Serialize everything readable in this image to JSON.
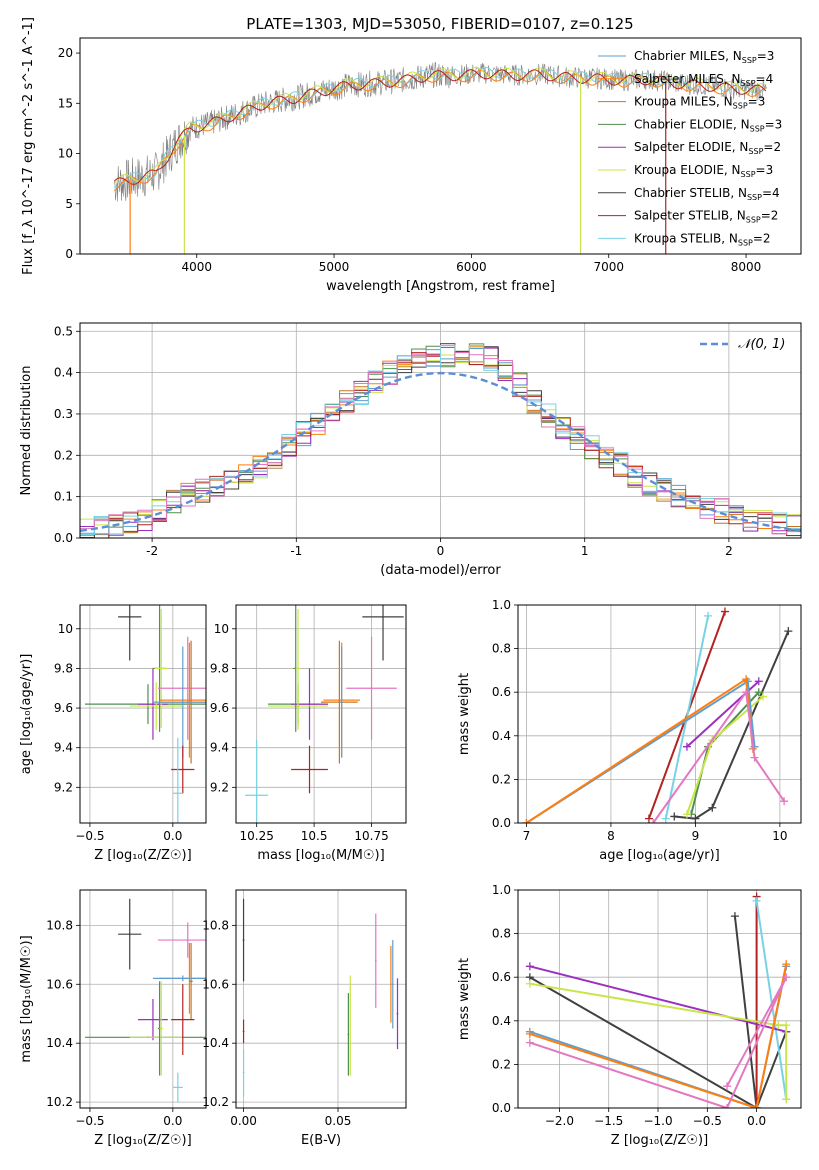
{
  "figure": {
    "title": "PLATE=1303, MJD=53050, FIBERID=0107, z=0.125"
  },
  "colors": {
    "chabrier_miles": "#5f9ed1",
    "salpeter_miles": "#ff7f0e",
    "kroupa_miles": "#c8741e",
    "chabrier_elodie": "#4f8f4f",
    "salpeter_elodie": "#9b30c0",
    "kroupa_elodie": "#c8e64a",
    "chabrier_stelib": "#404040",
    "salpeter_stelib": "#b22222",
    "kroupa_stelib": "#78d2e6",
    "kroupa_stelib_alt": "#e377c2"
  },
  "chart_data": [
    {
      "id": "spectrum",
      "type": "line",
      "xlabel": "wavelength [Angstrom, rest frame]",
      "ylabel": "Flux [f_λ 10^-17 erg cm^-2 s^-1 A^-1]",
      "xlim": [
        3150,
        8400
      ],
      "ylim": [
        0,
        21.5
      ],
      "xticks": [
        4000,
        5000,
        6000,
        7000,
        8000
      ],
      "yticks": [
        0,
        5,
        10,
        15,
        20
      ],
      "legend_position": "top-right",
      "legend": [
        {
          "label": "Chabrier MILES, N",
          "sub": "SSP",
          "suffix": "=3",
          "color": "chabrier_miles"
        },
        {
          "label": "Salpeter MILES, N",
          "sub": "SSP",
          "suffix": "=4",
          "color": "salpeter_miles"
        },
        {
          "label": "Kroupa MILES, N",
          "sub": "SSP",
          "suffix": "=3",
          "color": "kroupa_miles"
        },
        {
          "label": "Chabrier ELODIE, N",
          "sub": "SSP",
          "suffix": "=3",
          "color": "chabrier_elodie"
        },
        {
          "label": "Salpeter ELODIE, N",
          "sub": "SSP",
          "suffix": "=2",
          "color": "salpeter_elodie"
        },
        {
          "label": "Kroupa ELODIE, N",
          "sub": "SSP",
          "suffix": "=3",
          "color": "kroupa_elodie"
        },
        {
          "label": "Chabrier STELIB, N",
          "sub": "SSP",
          "suffix": "=4",
          "color": "chabrier_stelib"
        },
        {
          "label": "Salpeter STELIB, N",
          "sub": "SSP",
          "suffix": "=2",
          "color": "salpeter_stelib"
        },
        {
          "label": "Kroupa STELIB, N",
          "sub": "SSP",
          "suffix": "=2",
          "color": "kroupa_stelib"
        }
      ],
      "continuum": {
        "x": [
          3400,
          3550,
          3700,
          3850,
          3950,
          4100,
          4300,
          4500,
          4700,
          4900,
          5100,
          5300,
          5500,
          5700,
          5900,
          6100,
          6300,
          6500,
          6700,
          6900,
          7100,
          7300,
          7500,
          7700,
          7900,
          8150
        ],
        "y": [
          7.0,
          7.5,
          8.0,
          11.0,
          12.5,
          13.0,
          14.0,
          15.0,
          15.5,
          16.2,
          16.8,
          17.0,
          17.3,
          17.8,
          17.8,
          18.0,
          17.8,
          17.9,
          17.6,
          17.5,
          17.3,
          17.4,
          17.0,
          16.8,
          16.5,
          16.3
        ]
      },
      "dips": [
        {
          "series": "salpeter_miles",
          "x_from": 3510,
          "x_to": 3520
        },
        {
          "series": "kroupa_elodie",
          "x_from": 3905,
          "x_to": 3915
        },
        {
          "series": "kroupa_elodie",
          "x_from": 6790,
          "x_to": 6800
        },
        {
          "series": "salpeter_stelib",
          "x_from": 7410,
          "x_to": 7420
        }
      ]
    },
    {
      "id": "residuals",
      "type": "area",
      "xlabel": "(data-model)/error",
      "ylabel": "Normed distribution",
      "xlim": [
        -2.5,
        2.5
      ],
      "ylim": [
        0,
        0.52
      ],
      "xticks": [
        -2,
        -1,
        0,
        1,
        2
      ],
      "yticks": [
        0.0,
        0.1,
        0.2,
        0.3,
        0.4,
        0.5
      ],
      "legend_position": "top-right",
      "legend": [
        {
          "label": "𝒩(0, 1)",
          "color": "#5b8ed6"
        }
      ],
      "reference_curve": "gaussian(0,1)",
      "bin_width": 0.1,
      "bins_start": -2.5,
      "approx_profile": {
        "x": [
          -2.5,
          -2.2,
          -2.0,
          -1.8,
          -1.6,
          -1.4,
          -1.2,
          -1.0,
          -0.8,
          -0.6,
          -0.4,
          -0.2,
          0.0,
          0.2,
          0.4,
          0.6,
          0.8,
          1.0,
          1.2,
          1.4,
          1.6,
          1.8,
          2.0,
          2.2,
          2.5
        ],
        "y": [
          0.02,
          0.03,
          0.05,
          0.1,
          0.12,
          0.14,
          0.18,
          0.24,
          0.29,
          0.34,
          0.39,
          0.43,
          0.44,
          0.45,
          0.43,
          0.35,
          0.28,
          0.23,
          0.19,
          0.14,
          0.11,
          0.08,
          0.06,
          0.04,
          0.03
        ]
      },
      "series_colors": [
        "chabrier_miles",
        "salpeter_miles",
        "kroupa_miles",
        "chabrier_elodie",
        "salpeter_elodie",
        "kroupa_elodie",
        "chabrier_stelib",
        "salpeter_stelib",
        "kroupa_stelib",
        "kroupa_stelib_alt"
      ]
    },
    {
      "id": "age_vs_Z",
      "type": "scatter",
      "xlabel": "Z [log₁₀(Z/Z☉)]",
      "ylabel": "age  [log₁₀(age/yr)]",
      "xlim": [
        -0.56,
        0.2
      ],
      "ylim": [
        9.02,
        10.12
      ],
      "xticks": [
        -0.5,
        0.0
      ],
      "xticklabels": [
        "−0.5",
        "0.0"
      ],
      "yticks": [
        9.2,
        9.4,
        9.6,
        9.8,
        10.0
      ],
      "points": [
        {
          "x": -0.26,
          "y": 10.06,
          "xerr": 0.07,
          "yerr": 0.22,
          "color": "chabrier_stelib"
        },
        {
          "x": -0.15,
          "y": 9.62,
          "xerr": 0.38,
          "yerr": 0.1,
          "color": "chabrier_elodie"
        },
        {
          "x": -0.12,
          "y": 9.62,
          "xerr": 0.09,
          "yerr": 0.18,
          "color": "salpeter_elodie"
        },
        {
          "x": -0.1,
          "y": 9.61,
          "xerr": 0.16,
          "yerr": 0.12,
          "color": "kroupa_elodie"
        },
        {
          "x": -0.08,
          "y": 9.8,
          "xerr": 0.04,
          "yerr": 0.32,
          "color": "chabrier_elodie"
        },
        {
          "x": -0.07,
          "y": 9.8,
          "xerr": 0.04,
          "yerr": 0.3,
          "color": "kroupa_elodie"
        },
        {
          "x": 0.09,
          "y": 9.7,
          "xerr": 0.18,
          "yerr": 0.26,
          "color": "kroupa_stelib_alt"
        },
        {
          "x": 0.1,
          "y": 9.64,
          "xerr": 0.18,
          "yerr": 0.29,
          "color": "salpeter_miles"
        },
        {
          "x": 0.11,
          "y": 9.63,
          "xerr": 0.18,
          "yerr": 0.31,
          "color": "kroupa_miles"
        },
        {
          "x": 0.06,
          "y": 9.63,
          "xerr": 0.18,
          "yerr": 0.28,
          "color": "chabrier_miles"
        },
        {
          "x": 0.06,
          "y": 9.29,
          "xerr": 0.07,
          "yerr": 0.12,
          "color": "salpeter_stelib"
        },
        {
          "x": 0.03,
          "y": 9.17,
          "xerr": 0.03,
          "yerr": 0.28,
          "color": "kroupa_stelib"
        }
      ]
    },
    {
      "id": "age_vs_mass",
      "type": "scatter",
      "xlabel": "mass [log₁₀(M/M☉)]",
      "ylabel": "",
      "xlim": [
        10.16,
        10.9
      ],
      "ylim": [
        9.02,
        10.12
      ],
      "xticks": [
        10.25,
        10.5,
        10.75
      ],
      "yticks": [
        9.2,
        9.4,
        9.6,
        9.8,
        10.0
      ],
      "points": [
        {
          "x": 10.8,
          "y": 10.06,
          "xerr": 0.09,
          "yerr": 0.22,
          "color": "chabrier_stelib"
        },
        {
          "x": 10.43,
          "y": 9.62,
          "xerr": 0.13,
          "yerr": 0.1,
          "color": "chabrier_elodie"
        },
        {
          "x": 10.48,
          "y": 9.62,
          "xerr": 0.08,
          "yerr": 0.18,
          "color": "salpeter_elodie"
        },
        {
          "x": 10.43,
          "y": 9.61,
          "xerr": 0.13,
          "yerr": 0.12,
          "color": "kroupa_elodie"
        },
        {
          "x": 10.42,
          "y": 9.8,
          "xerr": 0.01,
          "yerr": 0.32,
          "color": "chabrier_elodie"
        },
        {
          "x": 10.43,
          "y": 9.8,
          "xerr": 0.01,
          "yerr": 0.3,
          "color": "kroupa_elodie"
        },
        {
          "x": 10.75,
          "y": 9.7,
          "xerr": 0.11,
          "yerr": 0.26,
          "color": "kroupa_stelib_alt"
        },
        {
          "x": 10.62,
          "y": 9.64,
          "xerr": 0.08,
          "yerr": 0.29,
          "color": "salpeter_miles"
        },
        {
          "x": 10.61,
          "y": 9.63,
          "xerr": 0.08,
          "yerr": 0.31,
          "color": "kroupa_miles"
        },
        {
          "x": 10.62,
          "y": 9.63,
          "xerr": 0.01,
          "yerr": 0.28,
          "color": "chabrier_miles"
        },
        {
          "x": 10.48,
          "y": 9.29,
          "xerr": 0.08,
          "yerr": 0.12,
          "color": "salpeter_stelib"
        },
        {
          "x": 10.25,
          "y": 9.16,
          "xerr": 0.05,
          "yerr": 0.28,
          "color": "kroupa_stelib"
        }
      ]
    },
    {
      "id": "mass_weight_vs_age",
      "type": "line",
      "xlabel": "age  [log₁₀(age/yr)]",
      "ylabel": "mass weight",
      "xlim": [
        6.9,
        10.25
      ],
      "ylim": [
        0,
        1
      ],
      "xticks": [
        7,
        8,
        9,
        10
      ],
      "yticks": [
        0.0,
        0.2,
        0.4,
        0.6,
        0.8,
        1.0
      ],
      "series": [
        {
          "color": "chabrier_stelib",
          "x": [
            8.75,
            9.0,
            9.2,
            10.1
          ],
          "y": [
            0.03,
            0.02,
            0.07,
            0.88
          ]
        },
        {
          "color": "salpeter_stelib",
          "x": [
            8.45,
            9.35
          ],
          "y": [
            0.02,
            0.97
          ]
        },
        {
          "color": "kroupa_stelib",
          "x": [
            8.65,
            9.15
          ],
          "y": [
            0.02,
            0.95
          ]
        },
        {
          "color": "salpeter_elodie",
          "x": [
            8.9,
            9.75
          ],
          "y": [
            0.35,
            0.65
          ]
        },
        {
          "color": "chabrier_elodie",
          "x": [
            8.95,
            9.15,
            9.75
          ],
          "y": [
            0.04,
            0.35,
            0.6
          ]
        },
        {
          "color": "kroupa_elodie",
          "x": [
            8.9,
            9.2,
            9.8
          ],
          "y": [
            0.04,
            0.38,
            0.58
          ]
        },
        {
          "color": "chabrier_miles",
          "x": [
            7.0,
            9.62,
            9.7
          ],
          "y": [
            0.0,
            0.65,
            0.35
          ]
        },
        {
          "color": "salpeter_miles",
          "x": [
            7.0,
            9.6,
            9.68
          ],
          "y": [
            0.0,
            0.66,
            0.34
          ]
        },
        {
          "color": "kroupa_stelib_alt",
          "x": [
            8.5,
            9.6,
            9.7,
            10.05
          ],
          "y": [
            0.0,
            0.6,
            0.3,
            0.1
          ]
        }
      ]
    },
    {
      "id": "mass_vs_Z",
      "type": "scatter",
      "xlabel": "Z [log₁₀(Z/Z☉)]",
      "ylabel": "mass [log₁₀(M/M☉)]",
      "xlim": [
        -0.56,
        0.2
      ],
      "ylim": [
        10.18,
        10.92
      ],
      "xticks": [
        -0.5,
        0.0
      ],
      "xticklabels": [
        "−0.5",
        "0.0"
      ],
      "yticks": [
        10.2,
        10.4,
        10.6,
        10.8
      ],
      "points": [
        {
          "x": -0.26,
          "y": 10.77,
          "xerr": 0.07,
          "yerr": 0.12,
          "color": "chabrier_stelib"
        },
        {
          "x": -0.15,
          "y": 10.42,
          "xerr": 0.38,
          "yerr": 0.0,
          "color": "chabrier_elodie"
        },
        {
          "x": -0.12,
          "y": 10.48,
          "xerr": 0.09,
          "yerr": 0.07,
          "color": "salpeter_elodie"
        },
        {
          "x": -0.1,
          "y": 10.42,
          "xerr": 0.16,
          "yerr": 0.0,
          "color": "kroupa_elodie"
        },
        {
          "x": -0.08,
          "y": 10.45,
          "xerr": 0.01,
          "yerr": 0.16,
          "color": "chabrier_elodie"
        },
        {
          "x": -0.07,
          "y": 10.45,
          "xerr": 0.01,
          "yerr": 0.16,
          "color": "kroupa_elodie"
        },
        {
          "x": 0.09,
          "y": 10.75,
          "xerr": 0.18,
          "yerr": 0.06,
          "color": "kroupa_stelib_alt"
        },
        {
          "x": 0.1,
          "y": 10.62,
          "xerr": 0.18,
          "yerr": 0.12,
          "color": "salpeter_miles"
        },
        {
          "x": 0.11,
          "y": 10.61,
          "xerr": 0.01,
          "yerr": 0.13,
          "color": "kroupa_miles"
        },
        {
          "x": 0.06,
          "y": 10.62,
          "xerr": 0.18,
          "yerr": 0.01,
          "color": "chabrier_miles"
        },
        {
          "x": 0.06,
          "y": 10.48,
          "xerr": 0.07,
          "yerr": 0.12,
          "color": "salpeter_stelib"
        },
        {
          "x": 0.03,
          "y": 10.25,
          "xerr": 0.03,
          "yerr": 0.05,
          "color": "kroupa_stelib"
        }
      ]
    },
    {
      "id": "mass_vs_ebv",
      "type": "scatter",
      "xlabel": "E(B-V)",
      "ylabel": "",
      "xlim": [
        -0.004,
        0.086
      ],
      "ylim": [
        10.18,
        10.92
      ],
      "xticks": [
        0.0,
        0.05
      ],
      "xticklabels": [
        "0.00",
        "0.05"
      ],
      "yticks": [
        10.2,
        10.4,
        10.6,
        10.8
      ],
      "points": [
        {
          "x": 0.0,
          "y": 10.75,
          "yerr": 0.14,
          "color": "chabrier_stelib"
        },
        {
          "x": 0.0,
          "y": 10.44,
          "yerr": 0.04,
          "color": "salpeter_stelib"
        },
        {
          "x": 0.0,
          "y": 10.3,
          "yerr": 0.08,
          "color": "kroupa_stelib"
        },
        {
          "x": 0.0555,
          "y": 10.43,
          "yerr": 0.14,
          "color": "chabrier_elodie"
        },
        {
          "x": 0.0565,
          "y": 10.46,
          "yerr": 0.17,
          "color": "kroupa_elodie"
        },
        {
          "x": 0.07,
          "y": 10.68,
          "yerr": 0.16,
          "color": "kroupa_stelib_alt"
        },
        {
          "x": 0.078,
          "y": 10.6,
          "yerr": 0.13,
          "color": "salpeter_miles"
        },
        {
          "x": 0.079,
          "y": 10.6,
          "yerr": 0.15,
          "color": "chabrier_miles"
        },
        {
          "x": 0.0815,
          "y": 10.5,
          "yerr": 0.12,
          "color": "salpeter_elodie"
        }
      ]
    },
    {
      "id": "mass_weight_vs_Z",
      "type": "line",
      "xlabel": "Z [log₁₀(Z/Z☉)]",
      "ylabel": "mass weight",
      "xlim": [
        -2.42,
        0.45
      ],
      "ylim": [
        0,
        1
      ],
      "xticks": [
        -2.0,
        -1.5,
        -1.0,
        -0.5,
        0.0
      ],
      "xticklabels": [
        "−2.0",
        "−1.5",
        "−1.0",
        "−0.5",
        "0.0"
      ],
      "yticks": [
        0.0,
        0.2,
        0.4,
        0.6,
        0.8,
        1.0
      ],
      "series": [
        {
          "color": "chabrier_stelib",
          "x": [
            -0.22,
            0.0,
            -2.3,
            0.0,
            0.3
          ],
          "y": [
            0.88,
            0.0,
            0.6,
            0.0,
            0.35
          ]
        },
        {
          "color": "salpeter_stelib",
          "x": [
            0.0,
            0.0
          ],
          "y": [
            0.97,
            0.0
          ]
        },
        {
          "color": "kroupa_stelib",
          "x": [
            0.0,
            0.3
          ],
          "y": [
            0.95,
            0.04
          ]
        },
        {
          "color": "salpeter_elodie",
          "x": [
            -2.3,
            0.3
          ],
          "y": [
            0.65,
            0.35
          ]
        },
        {
          "color": "kroupa_elodie",
          "x": [
            -2.3,
            0.22,
            0.3,
            0.3
          ],
          "y": [
            0.57,
            0.38,
            0.38,
            0.04
          ]
        },
        {
          "color": "chabrier_miles",
          "x": [
            -2.3,
            0.0,
            0.3
          ],
          "y": [
            0.35,
            0.0,
            0.65
          ]
        },
        {
          "color": "salpeter_miles",
          "x": [
            -2.3,
            0.0,
            0.3
          ],
          "y": [
            0.34,
            0.0,
            0.66
          ]
        },
        {
          "color": "kroupa_stelib_alt",
          "x": [
            -2.3,
            -0.3,
            0.3,
            -0.3
          ],
          "y": [
            0.3,
            0.0,
            0.6,
            0.1
          ]
        }
      ]
    }
  ]
}
